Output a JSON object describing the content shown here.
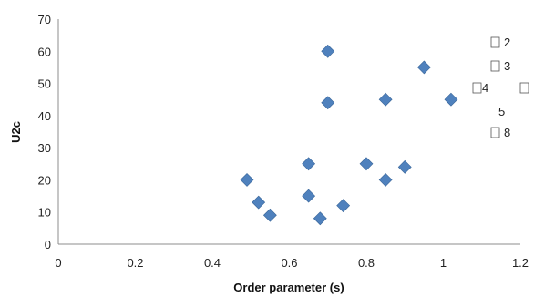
{
  "chart_data": {
    "type": "scatter",
    "title": "",
    "xlabel": "Order parameter (s)",
    "ylabel": "U2c",
    "xlim": [
      0,
      1.2
    ],
    "ylim": [
      0,
      70
    ],
    "x_ticks": [
      "0",
      "0.2",
      "0.4",
      "0.6",
      "0.8",
      "1",
      "1.2"
    ],
    "y_ticks": [
      "0",
      "10",
      "20",
      "30",
      "40",
      "50",
      "60",
      "70"
    ],
    "grid": false,
    "marker": "diamond",
    "marker_color": "#4f81bd",
    "points": [
      {
        "x": 0.49,
        "y": 20
      },
      {
        "x": 0.52,
        "y": 13
      },
      {
        "x": 0.55,
        "y": 9
      },
      {
        "x": 0.65,
        "y": 25
      },
      {
        "x": 0.65,
        "y": 15
      },
      {
        "x": 0.68,
        "y": 8
      },
      {
        "x": 0.7,
        "y": 60
      },
      {
        "x": 0.7,
        "y": 44
      },
      {
        "x": 0.74,
        "y": 12
      },
      {
        "x": 0.8,
        "y": 25
      },
      {
        "x": 0.85,
        "y": 45
      },
      {
        "x": 0.85,
        "y": 20
      },
      {
        "x": 0.9,
        "y": 24
      },
      {
        "x": 0.95,
        "y": 55
      },
      {
        "x": 1.02,
        "y": 45
      }
    ],
    "legend": {
      "placement": "right",
      "entries": [
        "2",
        "3",
        "4",
        "5",
        "8"
      ]
    }
  }
}
